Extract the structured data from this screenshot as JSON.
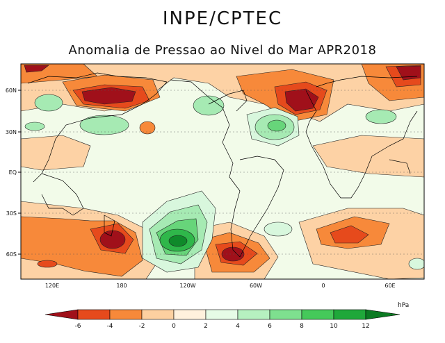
{
  "header": {
    "org": "INPE/CPTEC",
    "subtitle": "Anomalia de Pressao ao Nivel do Mar APR2018"
  },
  "axes": {
    "lat_ticks": [
      "60N",
      "30N",
      "EQ",
      "30S",
      "60S"
    ],
    "lon_ticks": [
      "120E",
      "180",
      "120W",
      "60W",
      "0",
      "60E"
    ]
  },
  "colorbar": {
    "unit": "hPa",
    "labels": [
      "-6",
      "-4",
      "-2",
      "0",
      "2",
      "4",
      "6",
      "8",
      "10",
      "12"
    ],
    "colors": [
      "#a0101a",
      "#e64a1c",
      "#f7893a",
      "#fdd0a0",
      "#fff1dd",
      "#e6fbe6",
      "#b6f0c0",
      "#7ee08f",
      "#45c95a",
      "#1fa83a",
      "#0b7a22"
    ]
  },
  "map": {
    "ocean": "#f2fbe9",
    "neg_colors": [
      "#fdd2a5",
      "#f7893a",
      "#e64a1c",
      "#a0101a"
    ],
    "pos_colors": [
      "#d8f7dd",
      "#a6eab3",
      "#67d57a",
      "#2fb74a",
      "#0f8a2a"
    ]
  }
}
